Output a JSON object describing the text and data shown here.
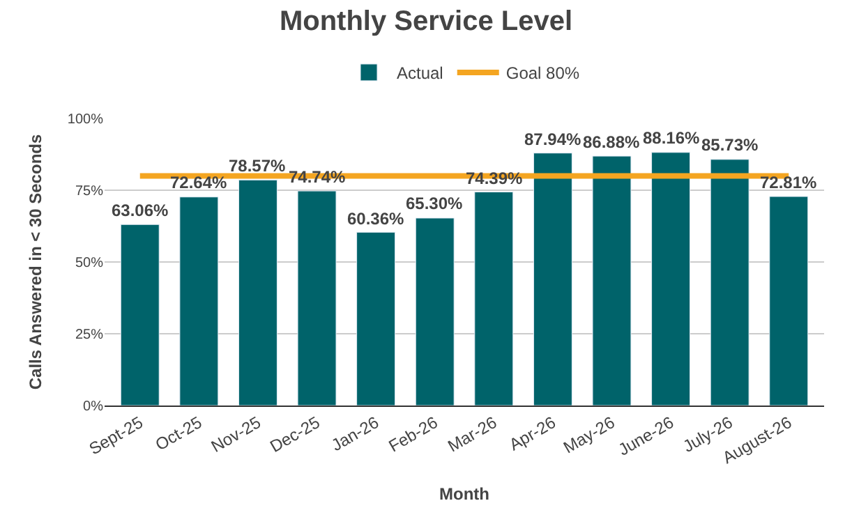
{
  "chart_data": {
    "type": "bar",
    "title": "Monthly Service Level",
    "xlabel": "Month",
    "ylabel": "Calls Answered in < 30 Seconds",
    "categories": [
      "Sept-25",
      "Oct-25",
      "Nov-25",
      "Dec-25",
      "Jan-26",
      "Feb-26",
      "Mar-26",
      "Apr-26",
      "May-26",
      "June-26",
      "July-26",
      "August-26"
    ],
    "series": [
      {
        "name": "Actual",
        "color": "#00636a",
        "values": [
          63.06,
          72.64,
          78.57,
          74.74,
          60.36,
          65.3,
          74.39,
          87.94,
          86.88,
          88.16,
          85.73,
          72.81
        ],
        "value_labels": [
          "63.06%",
          "72.64%",
          "78.57%",
          "74.74%",
          "60.36%",
          "65.30%",
          "74.39%",
          "87.94%",
          "86.88%",
          "88.16%",
          "85.73%",
          "72.81%"
        ]
      },
      {
        "name": "Goal 80%",
        "type": "line",
        "color": "#f4a521",
        "values": [
          80,
          80,
          80,
          80,
          80,
          80,
          80,
          80,
          80,
          80,
          80,
          80
        ]
      }
    ],
    "ylim": [
      0,
      100
    ],
    "yticks": [
      {
        "value": 0,
        "label": "0%"
      },
      {
        "value": 25,
        "label": "25%"
      },
      {
        "value": 50,
        "label": "50%"
      },
      {
        "value": 75,
        "label": "75%"
      },
      {
        "value": 100,
        "label": "100%"
      }
    ],
    "grid": "y",
    "legend": "top",
    "marker": "none",
    "line_style": "solid"
  }
}
